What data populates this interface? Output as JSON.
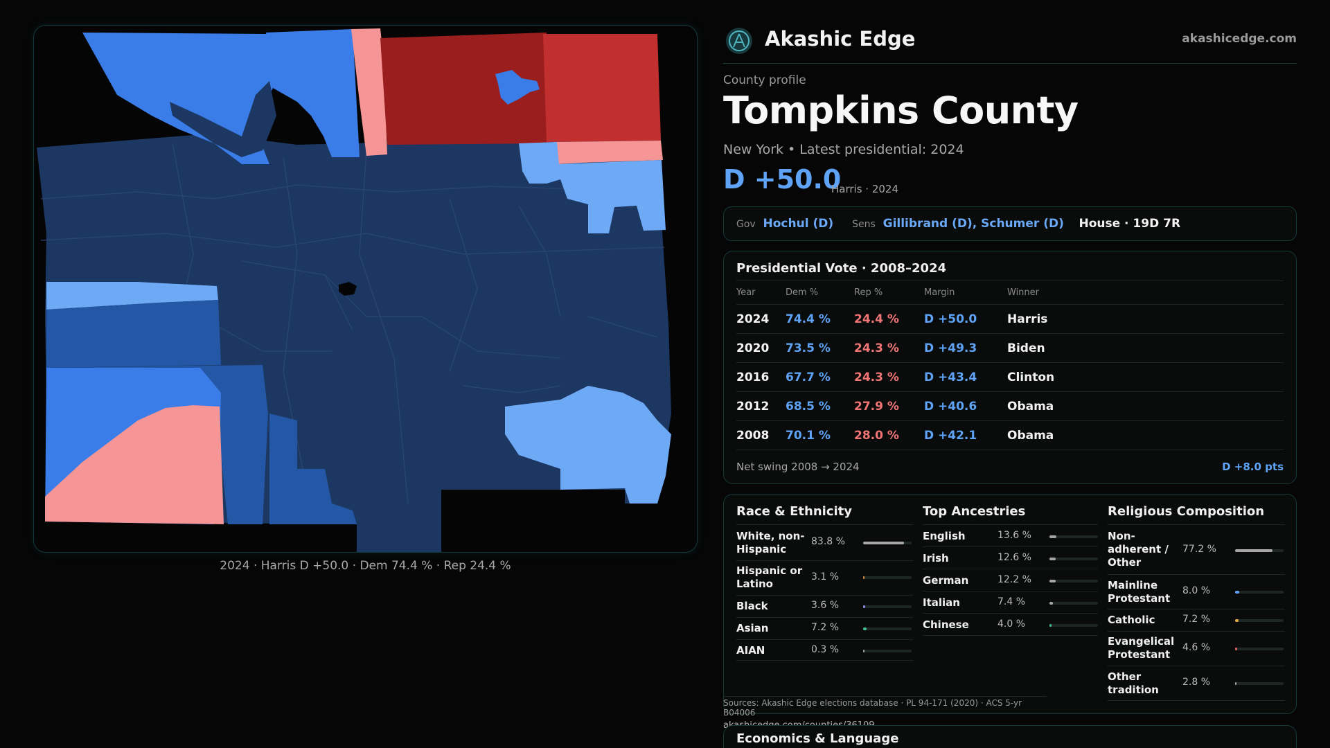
{
  "brand": {
    "name": "Akashic Edge",
    "url": "akashicedge.com"
  },
  "profile": {
    "label": "County profile",
    "county": "Tompkins County",
    "state_line": "New York • Latest presidential: 2024",
    "margin": "D +50.0",
    "margin_sub": "Harris · 2024"
  },
  "officials": {
    "gov_label": "Gov",
    "gov": "Hochul (D)",
    "sens_label": "Sens",
    "sens": "Gillibrand (D), Schumer (D)",
    "house": "House · 19D 7R"
  },
  "presidential": {
    "title": "Presidential Vote · 2008–2024",
    "headers": [
      "Year",
      "Dem %",
      "Rep %",
      "Margin",
      "Winner"
    ],
    "rows": [
      {
        "year": "2024",
        "dem": "74.4 %",
        "rep": "24.4 %",
        "margin": "D +50.0",
        "winner": "Harris"
      },
      {
        "year": "2020",
        "dem": "73.5 %",
        "rep": "24.3 %",
        "margin": "D +49.3",
        "winner": "Biden"
      },
      {
        "year": "2016",
        "dem": "67.7 %",
        "rep": "24.3 %",
        "margin": "D +43.4",
        "winner": "Clinton"
      },
      {
        "year": "2012",
        "dem": "68.5 %",
        "rep": "27.9 %",
        "margin": "D +40.6",
        "winner": "Obama"
      },
      {
        "year": "2008",
        "dem": "70.1 %",
        "rep": "28.0 %",
        "margin": "D +42.1",
        "winner": "Obama"
      }
    ],
    "swing_label": "Net swing 2008 → 2024",
    "swing_value": "D +8.0 pts"
  },
  "race": {
    "title": "Race & Ethnicity",
    "rows": [
      {
        "label": "White, non-Hispanic",
        "value": "83.8 %",
        "pct": 83.8,
        "color": "#a6a6a6"
      },
      {
        "label": "Hispanic or Latino",
        "value": "3.1 %",
        "pct": 3.1,
        "color": "#e08a3a"
      },
      {
        "label": "Black",
        "value": "3.6 %",
        "pct": 3.6,
        "color": "#8a8ae0"
      },
      {
        "label": "Asian",
        "value": "7.2 %",
        "pct": 7.2,
        "color": "#3fc28f"
      },
      {
        "label": "AIAN",
        "value": "0.3 %",
        "pct": 0.3,
        "color": "#a6a6a6"
      }
    ]
  },
  "ancestries": {
    "title": "Top Ancestries",
    "rows": [
      {
        "label": "English",
        "value": "13.6 %",
        "pct": 13.6,
        "color": "#a6a6a6"
      },
      {
        "label": "Irish",
        "value": "12.6 %",
        "pct": 12.6,
        "color": "#a6a6a6"
      },
      {
        "label": "German",
        "value": "12.2 %",
        "pct": 12.2,
        "color": "#a6a6a6"
      },
      {
        "label": "Italian",
        "value": "7.4 %",
        "pct": 7.4,
        "color": "#a6a6a6"
      },
      {
        "label": "Chinese",
        "value": "4.0 %",
        "pct": 4.0,
        "color": "#3fc28f"
      }
    ]
  },
  "religion": {
    "title": "Religious Composition",
    "rows": [
      {
        "label": "Non-adherent / Other",
        "value": "77.2 %",
        "pct": 77.2,
        "color": "#a6a6a6"
      },
      {
        "label": "Mainline Protestant",
        "value": "8.0 %",
        "pct": 8.0,
        "color": "#5ea3f5"
      },
      {
        "label": "Catholic",
        "value": "7.2 %",
        "pct": 7.2,
        "color": "#e0a93a"
      },
      {
        "label": "Evangelical Protestant",
        "value": "4.6 %",
        "pct": 4.6,
        "color": "#e06060"
      },
      {
        "label": "Other tradition",
        "value": "2.8 %",
        "pct": 2.8,
        "color": "#a6a6a6"
      }
    ]
  },
  "sources": {
    "text": "Sources: Akashic Edge elections database · PL 94-171 (2020) · ACS 5-yr B04006",
    "url": "akashicedge.com/counties/36109"
  },
  "econ": {
    "title": "Economics & Language"
  },
  "map": {
    "caption": "2024 · Harris D +50.0 · Dem 74.4 % · Rep 24.4 %",
    "colors": {
      "dem_dark": "#1c3862",
      "dem_mid": "#2458a6",
      "dem": "#3a7ce8",
      "dem_light": "#6ea9f5",
      "rep_light": "#f59595",
      "rep": "#c22f2f",
      "rep_dark": "#9a1e1e"
    }
  }
}
